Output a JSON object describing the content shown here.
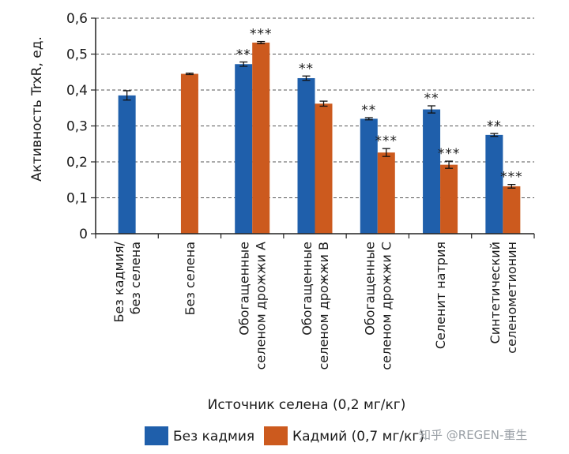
{
  "chart_data": {
    "type": "bar",
    "ylabel": "Активность TrxR, ед.",
    "xlabel": "Источник селена (0,2 мг/кг)",
    "ylim": [
      0,
      0.6
    ],
    "yticks": [
      0,
      0.1,
      0.2,
      0.3,
      0.4,
      0.5,
      0.6
    ],
    "ytick_labels": [
      "0",
      "0,1",
      "0,2",
      "0,3",
      "0,4",
      "0,5",
      "0,6"
    ],
    "grid": "horizontal-dashed",
    "categories": [
      [
        "Без кадмия/",
        "без селена"
      ],
      [
        "Без селена"
      ],
      [
        "Обогащенные",
        "селеном дрожжи А"
      ],
      [
        "Обогащенные",
        "селеном дрожжи В"
      ],
      [
        "Обогащенные",
        "селеном дрожжи С"
      ],
      [
        "Селенит натрия"
      ],
      [
        "Синтетический",
        "селенометионин"
      ]
    ],
    "series": [
      {
        "name": "Без кадмия",
        "color": "#1f5fab",
        "values": [
          0.385,
          null,
          0.472,
          0.433,
          0.32,
          0.346,
          0.275
        ],
        "errors": [
          0.013,
          null,
          0.006,
          0.006,
          0.003,
          0.01,
          0.004
        ],
        "annotations": [
          "",
          "",
          "**",
          "**",
          "**",
          "**",
          "**"
        ]
      },
      {
        "name": "Кадмий (0,7 мг/кг)",
        "color": "#cc5a1e",
        "values": [
          null,
          0.445,
          0.532,
          0.362,
          0.226,
          0.192,
          0.132
        ],
        "errors": [
          null,
          0.002,
          0.003,
          0.007,
          0.011,
          0.01,
          0.005
        ],
        "annotations": [
          "",
          "",
          "***",
          "",
          "***",
          "***",
          "***"
        ]
      }
    ],
    "legend": "bottom"
  },
  "watermark": "知乎 @REGEN-重生"
}
